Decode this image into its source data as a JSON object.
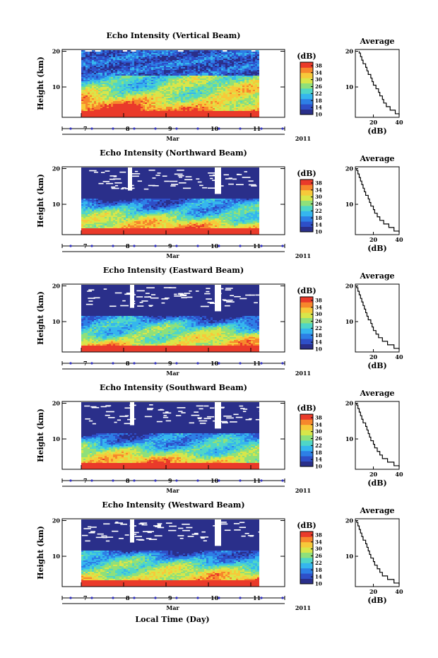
{
  "colors": {
    "background": "#ffffff",
    "no_data": "#ffffff",
    "colormap": [
      "#2a2f8a",
      "#2e4fc8",
      "#2d7fe6",
      "#35b6ee",
      "#4fd6c7",
      "#8fe07a",
      "#d8e64a",
      "#f7c93a",
      "#f7872c",
      "#ea3a2a"
    ],
    "time_axis": "#3030c0"
  },
  "figure": {
    "xlabel": "Local Time (Day)",
    "month_label": "Mar",
    "year_label": "2011",
    "ylabel": "Height (km)",
    "avg_title": "Average",
    "avg_xlabel": "(dB)",
    "cb_unit": "(dB)"
  },
  "chart_data": [
    {
      "type": "heatmap",
      "title": "Echo Intensity (Vertical Beam)",
      "beam": "vertical",
      "xlabel": "Mar",
      "ylabel": "Height (km)",
      "x_ticks": [
        "7",
        "8",
        "9",
        "10",
        "11"
      ],
      "x_range_day": [
        6.55,
        11.8
      ],
      "data_range_day": [
        7.0,
        11.2
      ],
      "y_ticks": [
        10,
        20
      ],
      "ylim_km": [
        1.5,
        20.5
      ],
      "colorbar": {
        "unit": "(dB)",
        "ticks": [
          10,
          14,
          18,
          22,
          26,
          30,
          34,
          38
        ],
        "range": [
          10,
          40
        ]
      },
      "gaps_day": [],
      "average_profile": {
        "title": "Average",
        "xlabel": "(dB)",
        "x_ticks": [
          "20",
          "40"
        ],
        "xlim_db": [
          6,
          40
        ],
        "y_ticks": [
          10,
          20
        ],
        "height_km": [
          2,
          3,
          4,
          5,
          6,
          7,
          8,
          9,
          10,
          11,
          12,
          13,
          14,
          15,
          16,
          17,
          18,
          19,
          20
        ],
        "db": [
          40,
          37,
          33,
          30,
          28,
          27,
          25,
          24,
          22,
          20,
          19,
          18,
          16,
          15,
          14,
          12,
          11,
          10,
          9
        ]
      }
    },
    {
      "type": "heatmap",
      "title": "Echo Intensity (Northward Beam)",
      "beam": "northward",
      "xlabel": "Mar",
      "ylabel": "Height (km)",
      "x_ticks": [
        "7",
        "8",
        "9",
        "10",
        "11"
      ],
      "x_range_day": [
        6.55,
        11.8
      ],
      "data_range_day": [
        7.0,
        11.2
      ],
      "y_ticks": [
        10,
        20
      ],
      "ylim_km": [
        1.5,
        20.5
      ],
      "colorbar": {
        "unit": "(dB)",
        "ticks": [
          10,
          14,
          18,
          22,
          26,
          30,
          34,
          38
        ],
        "range": [
          10,
          40
        ]
      },
      "gaps_day": [
        [
          8.1,
          8.2
        ],
        [
          10.15,
          10.3
        ]
      ],
      "average_profile": {
        "title": "Average",
        "xlabel": "(dB)",
        "x_ticks": [
          "20",
          "40"
        ],
        "xlim_db": [
          6,
          40
        ],
        "y_ticks": [
          10,
          20
        ],
        "height_km": [
          2,
          3,
          4,
          5,
          6,
          7,
          8,
          9,
          10,
          11,
          12,
          13,
          14,
          15,
          16,
          17,
          18,
          19,
          20
        ],
        "db": [
          40,
          36,
          32,
          28,
          25,
          23,
          21,
          20,
          18,
          17,
          16,
          14,
          13,
          12,
          11,
          10,
          9,
          8,
          7
        ]
      }
    },
    {
      "type": "heatmap",
      "title": "Echo Intensity (Eastward Beam)",
      "beam": "eastward",
      "xlabel": "Mar",
      "ylabel": "Height (km)",
      "x_ticks": [
        "7",
        "8",
        "9",
        "10",
        "11"
      ],
      "x_range_day": [
        6.55,
        11.8
      ],
      "data_range_day": [
        7.0,
        11.2
      ],
      "y_ticks": [
        10,
        20
      ],
      "ylim_km": [
        1.5,
        20.5
      ],
      "colorbar": {
        "unit": "(dB)",
        "ticks": [
          10,
          14,
          18,
          22,
          26,
          30,
          34,
          38
        ],
        "range": [
          10,
          40
        ]
      },
      "gaps_day": [
        [
          8.15,
          8.25
        ],
        [
          10.15,
          10.3
        ]
      ],
      "average_profile": {
        "title": "Average",
        "xlabel": "(dB)",
        "x_ticks": [
          "20",
          "40"
        ],
        "xlim_db": [
          6,
          40
        ],
        "y_ticks": [
          10,
          20
        ],
        "height_km": [
          2,
          3,
          4,
          5,
          6,
          7,
          8,
          9,
          10,
          11,
          12,
          13,
          14,
          15,
          16,
          17,
          18,
          19,
          20
        ],
        "db": [
          40,
          36,
          31,
          27,
          24,
          22,
          20,
          19,
          18,
          16,
          15,
          14,
          13,
          12,
          11,
          10,
          9,
          8,
          7
        ]
      }
    },
    {
      "type": "heatmap",
      "title": "Echo Intensity (Southward Beam)",
      "beam": "southward",
      "xlabel": "Mar",
      "ylabel": "Height (km)",
      "x_ticks": [
        "7",
        "8",
        "9",
        "10",
        "11"
      ],
      "x_range_day": [
        6.55,
        11.8
      ],
      "data_range_day": [
        7.0,
        11.2
      ],
      "y_ticks": [
        10,
        20
      ],
      "ylim_km": [
        1.5,
        20.5
      ],
      "colorbar": {
        "unit": "(dB)",
        "ticks": [
          10,
          14,
          18,
          22,
          26,
          30,
          34,
          38
        ],
        "range": [
          10,
          40
        ]
      },
      "gaps_day": [
        [
          8.15,
          8.25
        ],
        [
          10.15,
          10.3
        ]
      ],
      "average_profile": {
        "title": "Average",
        "xlabel": "(dB)",
        "x_ticks": [
          "20",
          "40"
        ],
        "xlim_db": [
          6,
          40
        ],
        "y_ticks": [
          10,
          20
        ],
        "height_km": [
          2,
          3,
          4,
          5,
          6,
          7,
          8,
          9,
          10,
          11,
          12,
          13,
          14,
          15,
          16,
          17,
          18,
          19,
          20
        ],
        "db": [
          40,
          36,
          31,
          27,
          25,
          23,
          21,
          20,
          18,
          17,
          16,
          15,
          14,
          12,
          11,
          10,
          9,
          8,
          7
        ]
      }
    },
    {
      "type": "heatmap",
      "title": "Echo Intensity (Westward Beam)",
      "beam": "westward",
      "xlabel": "Mar",
      "ylabel": "Height (km)",
      "x_ticks": [
        "7",
        "8",
        "9",
        "10",
        "11"
      ],
      "x_range_day": [
        6.55,
        11.8
      ],
      "data_range_day": [
        7.0,
        11.2
      ],
      "y_ticks": [
        10,
        20
      ],
      "ylim_km": [
        1.5,
        20.5
      ],
      "colorbar": {
        "unit": "(dB)",
        "ticks": [
          10,
          14,
          18,
          22,
          26,
          30,
          34,
          38
        ],
        "range": [
          10,
          40
        ]
      },
      "gaps_day": [
        [
          8.15,
          8.25
        ],
        [
          10.15,
          10.3
        ]
      ],
      "average_profile": {
        "title": "Average",
        "xlabel": "(dB)",
        "x_ticks": [
          "20",
          "40"
        ],
        "xlim_db": [
          6,
          40
        ],
        "y_ticks": [
          10,
          20
        ],
        "height_km": [
          2,
          3,
          4,
          5,
          6,
          7,
          8,
          9,
          10,
          11,
          12,
          13,
          14,
          15,
          16,
          17,
          18,
          19,
          20
        ],
        "db": [
          40,
          36,
          31,
          27,
          25,
          23,
          21,
          20,
          18,
          17,
          16,
          15,
          14,
          12,
          11,
          10,
          9,
          8,
          7
        ]
      }
    }
  ]
}
